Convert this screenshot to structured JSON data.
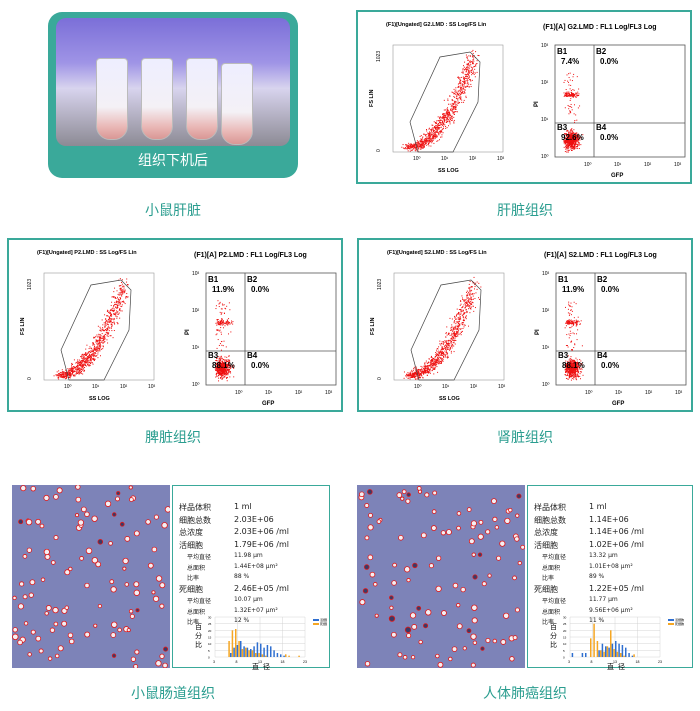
{
  "photo": {
    "label": "组织下机后",
    "caption": "小鼠肝脏"
  },
  "flow": [
    {
      "id": "liver",
      "caption": "肝脏组织",
      "scatter_title": "(F1)[Ungated] G2.LMD : SS Log/FS Lin",
      "quad_title": "(F1)[A] G2.LMD : FL1 Log/FL3 Log",
      "quads": [
        {
          "name": "B1",
          "value": "7.4%"
        },
        {
          "name": "B2",
          "value": "0.0%"
        },
        {
          "name": "B3",
          "value": "92.6%"
        },
        {
          "name": "B4",
          "value": "0.0%"
        }
      ]
    },
    {
      "id": "spleen",
      "caption": "脾脏组织",
      "scatter_title": "(F1)[Ungated] P2.LMD : SS Log/FS Lin",
      "quad_title": "(F1)[A] P2.LMD : FL1 Log/FL3 Log",
      "quads": [
        {
          "name": "B1",
          "value": "11.9%"
        },
        {
          "name": "B2",
          "value": "0.0%"
        },
        {
          "name": "B3",
          "value": "88.1%"
        },
        {
          "name": "B4",
          "value": "0.0%"
        }
      ]
    },
    {
      "id": "kidney",
      "caption": "肾脏组织",
      "scatter_title": "(F1)[Ungated] S2.LMD : SS Log/FS Lin",
      "quad_title": "(F1)[A] S2.LMD : FL1 Log/FL3 Log",
      "quads": [
        {
          "name": "B1",
          "value": "11.9%"
        },
        {
          "name": "B2",
          "value": "0.0%"
        },
        {
          "name": "B3",
          "value": "88.1%"
        },
        {
          "name": "B4",
          "value": "0.0%"
        }
      ]
    }
  ],
  "axes": {
    "fs": "FS LIN",
    "ss": "SS LOG",
    "pi": "PI",
    "gfp": "GFP",
    "fs_ticks": [
      "0",
      "1023"
    ],
    "log_ticks": [
      "10⁰",
      "10¹",
      "10²",
      "10³"
    ]
  },
  "counts": [
    {
      "caption": "小鼠肠道组织",
      "rows": [
        {
          "k": "样品体积",
          "v": "1 ml",
          "sub": false
        },
        {
          "k": "细胞总数",
          "v": "2.03E+06",
          "sub": false
        },
        {
          "k": "总浓度",
          "v": "2.03E+06 /ml",
          "sub": false
        },
        {
          "k": "活细胞",
          "v": "1.79E+06 /ml",
          "sub": false
        },
        {
          "k": "平均直径",
          "v": "11.98 μm",
          "sub": true
        },
        {
          "k": "总面积",
          "v": "1.44E+08 μm²",
          "sub": true
        },
        {
          "k": "比率",
          "v": "88 %",
          "sub": true
        },
        {
          "k": "死细胞",
          "v": "2.46E+05 /ml",
          "sub": false
        },
        {
          "k": "平均直径",
          "v": "10.07 μm",
          "sub": true
        },
        {
          "k": "总面积",
          "v": "1.32E+07 μm²",
          "sub": true
        },
        {
          "k": "比率",
          "v": "12 %",
          "sub": true
        }
      ],
      "hist": {
        "live": [
          0,
          0,
          0,
          0,
          3,
          7,
          9,
          12,
          8,
          7,
          6,
          8,
          11,
          10,
          7,
          9,
          8,
          5,
          3,
          2,
          1,
          0,
          0,
          0,
          0,
          0,
          0
        ],
        "dead": [
          0,
          0,
          0,
          0,
          12,
          20,
          21,
          12,
          6,
          7,
          5,
          5,
          3,
          3,
          2,
          1,
          0,
          0,
          0,
          0,
          0,
          2,
          1,
          0,
          0,
          1,
          0
        ]
      }
    },
    {
      "caption": "人体肺癌组织",
      "rows": [
        {
          "k": "样品体积",
          "v": "1 ml",
          "sub": false
        },
        {
          "k": "细胞总数",
          "v": "1.14E+06",
          "sub": false
        },
        {
          "k": "总浓度",
          "v": "1.14E+06 /ml",
          "sub": false
        },
        {
          "k": "活细胞",
          "v": "1.02E+06 /ml",
          "sub": false
        },
        {
          "k": "平均直径",
          "v": "13.32 μm",
          "sub": true
        },
        {
          "k": "总面积",
          "v": "1.01E+08 μm²",
          "sub": true
        },
        {
          "k": "比率",
          "v": "89 %",
          "sub": true
        },
        {
          "k": "死细胞",
          "v": "1.22E+05 /ml",
          "sub": false
        },
        {
          "k": "平均直径",
          "v": "11.77 μm",
          "sub": true
        },
        {
          "k": "总面积",
          "v": "9.56E+06 μm²",
          "sub": true
        },
        {
          "k": "比率",
          "v": "11 %",
          "sub": true
        }
      ],
      "hist": {
        "live": [
          3,
          0,
          0,
          3,
          3,
          0,
          0,
          0,
          5,
          10,
          8,
          7,
          10,
          12,
          10,
          9,
          7,
          3,
          1,
          0,
          0,
          0,
          0,
          0,
          0,
          0,
          0
        ],
        "dead": [
          0,
          0,
          0,
          0,
          0,
          0,
          14,
          25,
          12,
          5,
          4,
          8,
          20,
          6,
          4,
          3,
          1,
          0,
          0,
          2,
          0,
          0,
          0,
          0,
          0,
          0,
          0
        ]
      }
    }
  ],
  "hist_axis": {
    "ylabel": "百分比",
    "xlabel": "直径",
    "xticks": [
      "3",
      "8",
      "13",
      "18",
      "23"
    ],
    "yticks": [
      "0",
      "5",
      "10",
      "15",
      "20",
      "25",
      "30"
    ],
    "legend": [
      "活细胞",
      "死细胞"
    ]
  },
  "colors": {
    "accent": "#3aa99a",
    "caption": "#2a9d8f",
    "dots": "#ee1111",
    "live": "#2f6fd0",
    "dead": "#f5a623"
  }
}
